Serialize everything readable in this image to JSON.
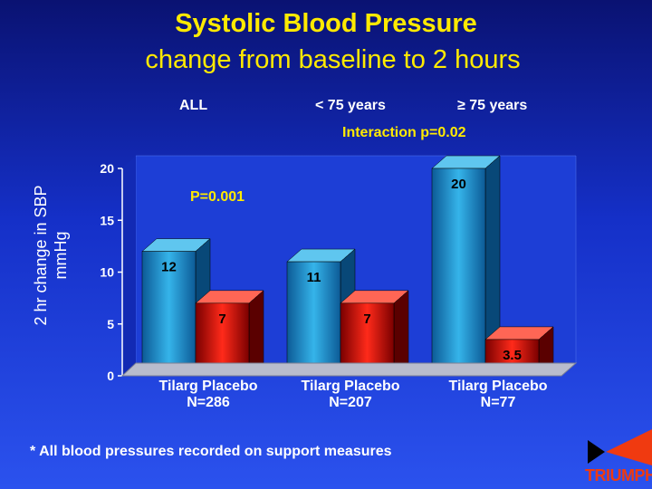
{
  "title": "Systolic Blood Pressure",
  "subtitle": "change from baseline to 2 hours",
  "groups": [
    "ALL",
    "< 75 years",
    "≥ 75 years"
  ],
  "interaction": "Interaction p=0.02",
  "pvalue_annotation": "P=0.001",
  "footnote": "* All blood pressures recorded on support measures",
  "logo": "TRIUMPH",
  "colors": {
    "tilarg": "#1e90c8",
    "placebo": "#dd1010",
    "title": "#ffea00",
    "background": "#1530c8"
  },
  "chart_data": {
    "type": "bar",
    "ylabel": "2 hr change in SBP mmHg",
    "ylabel_lines": [
      "2 hr change in SBP",
      "mmHg"
    ],
    "ylim": [
      0,
      20
    ],
    "yticks": [
      0,
      5,
      10,
      15,
      20
    ],
    "categories": [
      "Tilarg  Placebo N=286",
      "Tilarg  Placebo N=207",
      "Tilarg Placebo N=77"
    ],
    "category_lines": [
      [
        "Tilarg  Placebo",
        "N=286"
      ],
      [
        "Tilarg  Placebo",
        "N=207"
      ],
      [
        "Tilarg Placebo",
        "N=77"
      ]
    ],
    "series": [
      {
        "name": "Tilarg",
        "values": [
          12,
          11,
          20
        ],
        "labels": [
          "12",
          "11",
          "20"
        ]
      },
      {
        "name": "Placebo",
        "values": [
          7,
          7,
          3.5
        ],
        "labels": [
          "7",
          "7",
          "3.5"
        ]
      }
    ]
  }
}
